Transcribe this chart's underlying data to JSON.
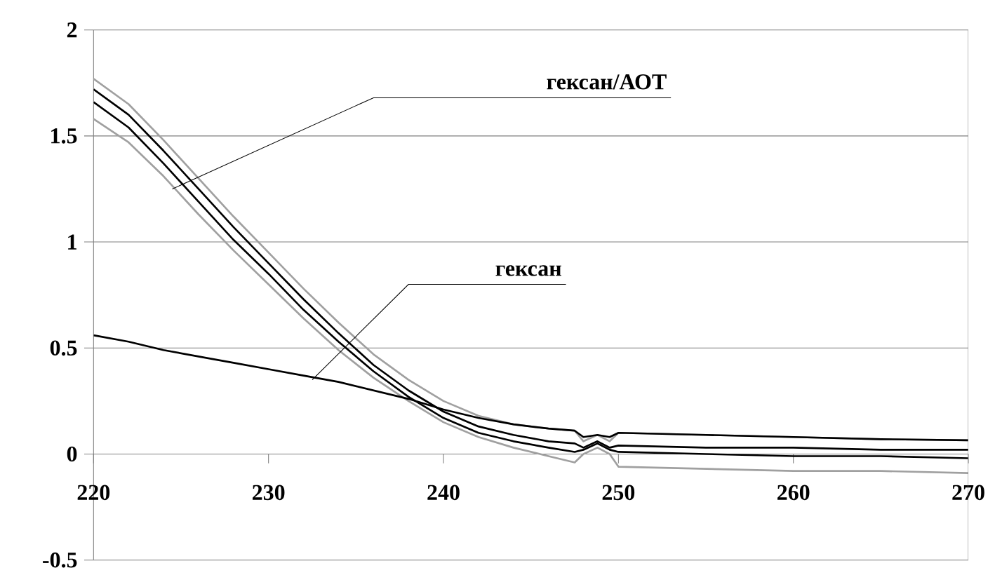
{
  "chart_data": {
    "type": "line",
    "x": [
      220,
      222,
      224,
      226,
      228,
      230,
      232,
      234,
      236,
      238,
      240,
      242,
      244,
      246,
      247.5,
      248,
      248.8,
      249.5,
      250,
      255,
      260,
      265,
      270
    ],
    "series": [
      {
        "color": "#a0a0a0",
        "values": [
          1.77,
          1.65,
          1.48,
          1.3,
          1.12,
          0.95,
          0.78,
          0.62,
          0.47,
          0.35,
          0.25,
          0.18,
          0.14,
          0.12,
          0.11,
          0.06,
          0.09,
          0.06,
          0.1,
          0.09,
          0.08,
          0.07,
          0.065
        ]
      },
      {
        "color": "#000000",
        "values": [
          1.72,
          1.6,
          1.43,
          1.25,
          1.07,
          0.9,
          0.73,
          0.57,
          0.42,
          0.3,
          0.2,
          0.13,
          0.09,
          0.06,
          0.05,
          0.03,
          0.06,
          0.03,
          0.04,
          0.03,
          0.03,
          0.02,
          0.02
        ]
      },
      {
        "color": "#000000",
        "values": [
          1.66,
          1.54,
          1.37,
          1.19,
          1.01,
          0.85,
          0.68,
          0.53,
          0.39,
          0.27,
          0.17,
          0.1,
          0.06,
          0.03,
          0.01,
          0.02,
          0.05,
          0.02,
          0.01,
          0.0,
          -0.01,
          -0.01,
          -0.02
        ]
      },
      {
        "color": "#a0a0a0",
        "values": [
          1.58,
          1.47,
          1.31,
          1.13,
          0.96,
          0.8,
          0.64,
          0.49,
          0.36,
          0.25,
          0.15,
          0.08,
          0.03,
          -0.01,
          -0.04,
          0.0,
          0.03,
          0.0,
          -0.06,
          -0.07,
          -0.08,
          -0.08,
          -0.09
        ]
      },
      {
        "color": "#000000",
        "values": [
          0.56,
          0.53,
          0.49,
          0.46,
          0.43,
          0.4,
          0.37,
          0.34,
          0.3,
          0.26,
          0.21,
          0.17,
          0.14,
          0.12,
          0.11,
          0.08,
          0.09,
          0.08,
          0.1,
          0.09,
          0.08,
          0.07,
          0.065
        ]
      }
    ],
    "xlim": [
      220,
      270
    ],
    "xticks": [
      220,
      230,
      240,
      250,
      260,
      270
    ],
    "ylim": [
      -0.5,
      2
    ],
    "yticks": [
      -0.5,
      0,
      0.5,
      1,
      1.5,
      2
    ],
    "grid": "y",
    "marker": "none",
    "line_style": "solid",
    "annotations": [
      {
        "text": "гексан/АОТ",
        "x": 224.5,
        "y": 1.25
      },
      {
        "text": "гексан",
        "x": 232.5,
        "y": 0.35
      }
    ]
  }
}
